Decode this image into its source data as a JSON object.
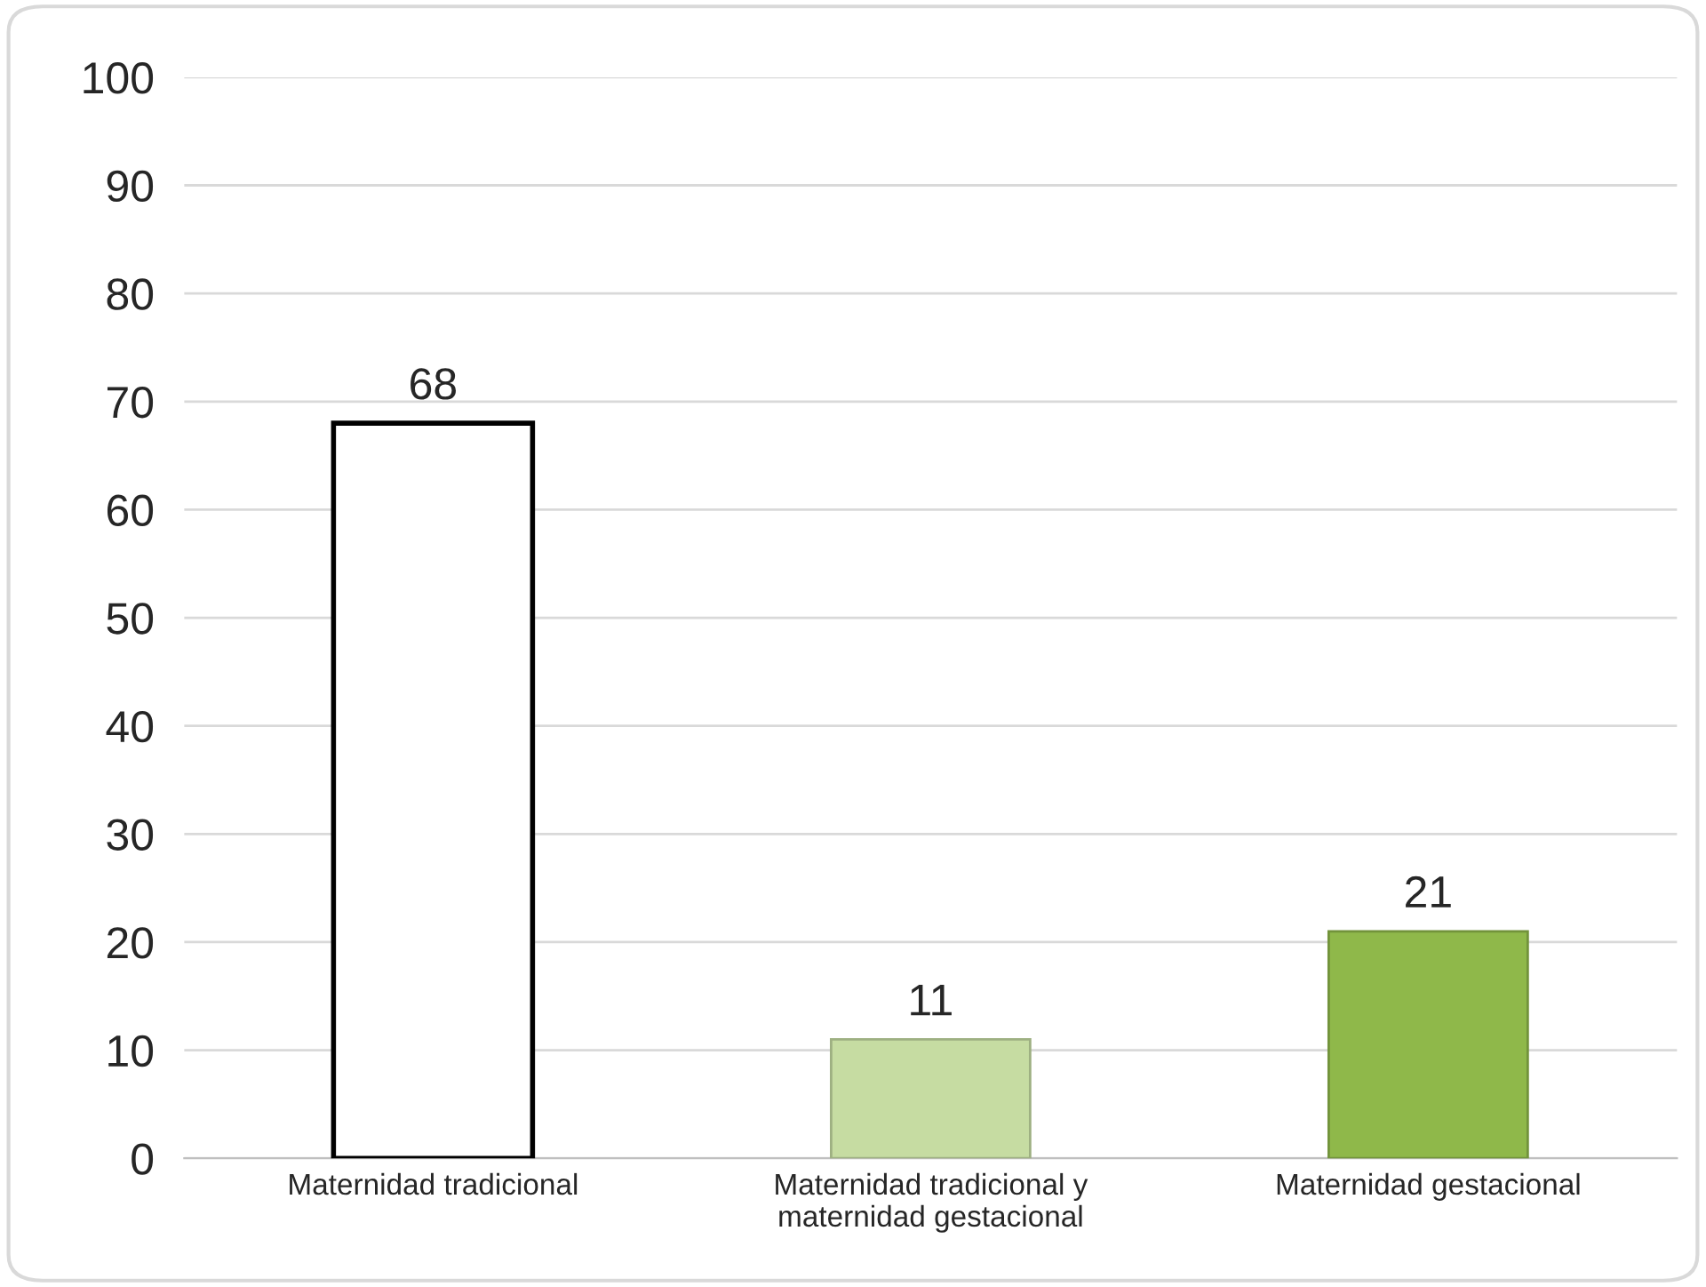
{
  "chart_data": {
    "type": "bar",
    "categories": [
      "Maternidad tradicional",
      "Maternidad tradicional y\nmaternidad gestacional",
      "Maternidad gestacional"
    ],
    "values": [
      68,
      11,
      21
    ],
    "colors": [
      "#ffffff",
      "#c6dca2",
      "#8fb84a"
    ],
    "ylim": [
      0,
      100
    ],
    "yticks": [
      0,
      10,
      20,
      30,
      40,
      50,
      60,
      70,
      80,
      90,
      100
    ],
    "grid": "y",
    "data_labels": true,
    "legend": false
  }
}
